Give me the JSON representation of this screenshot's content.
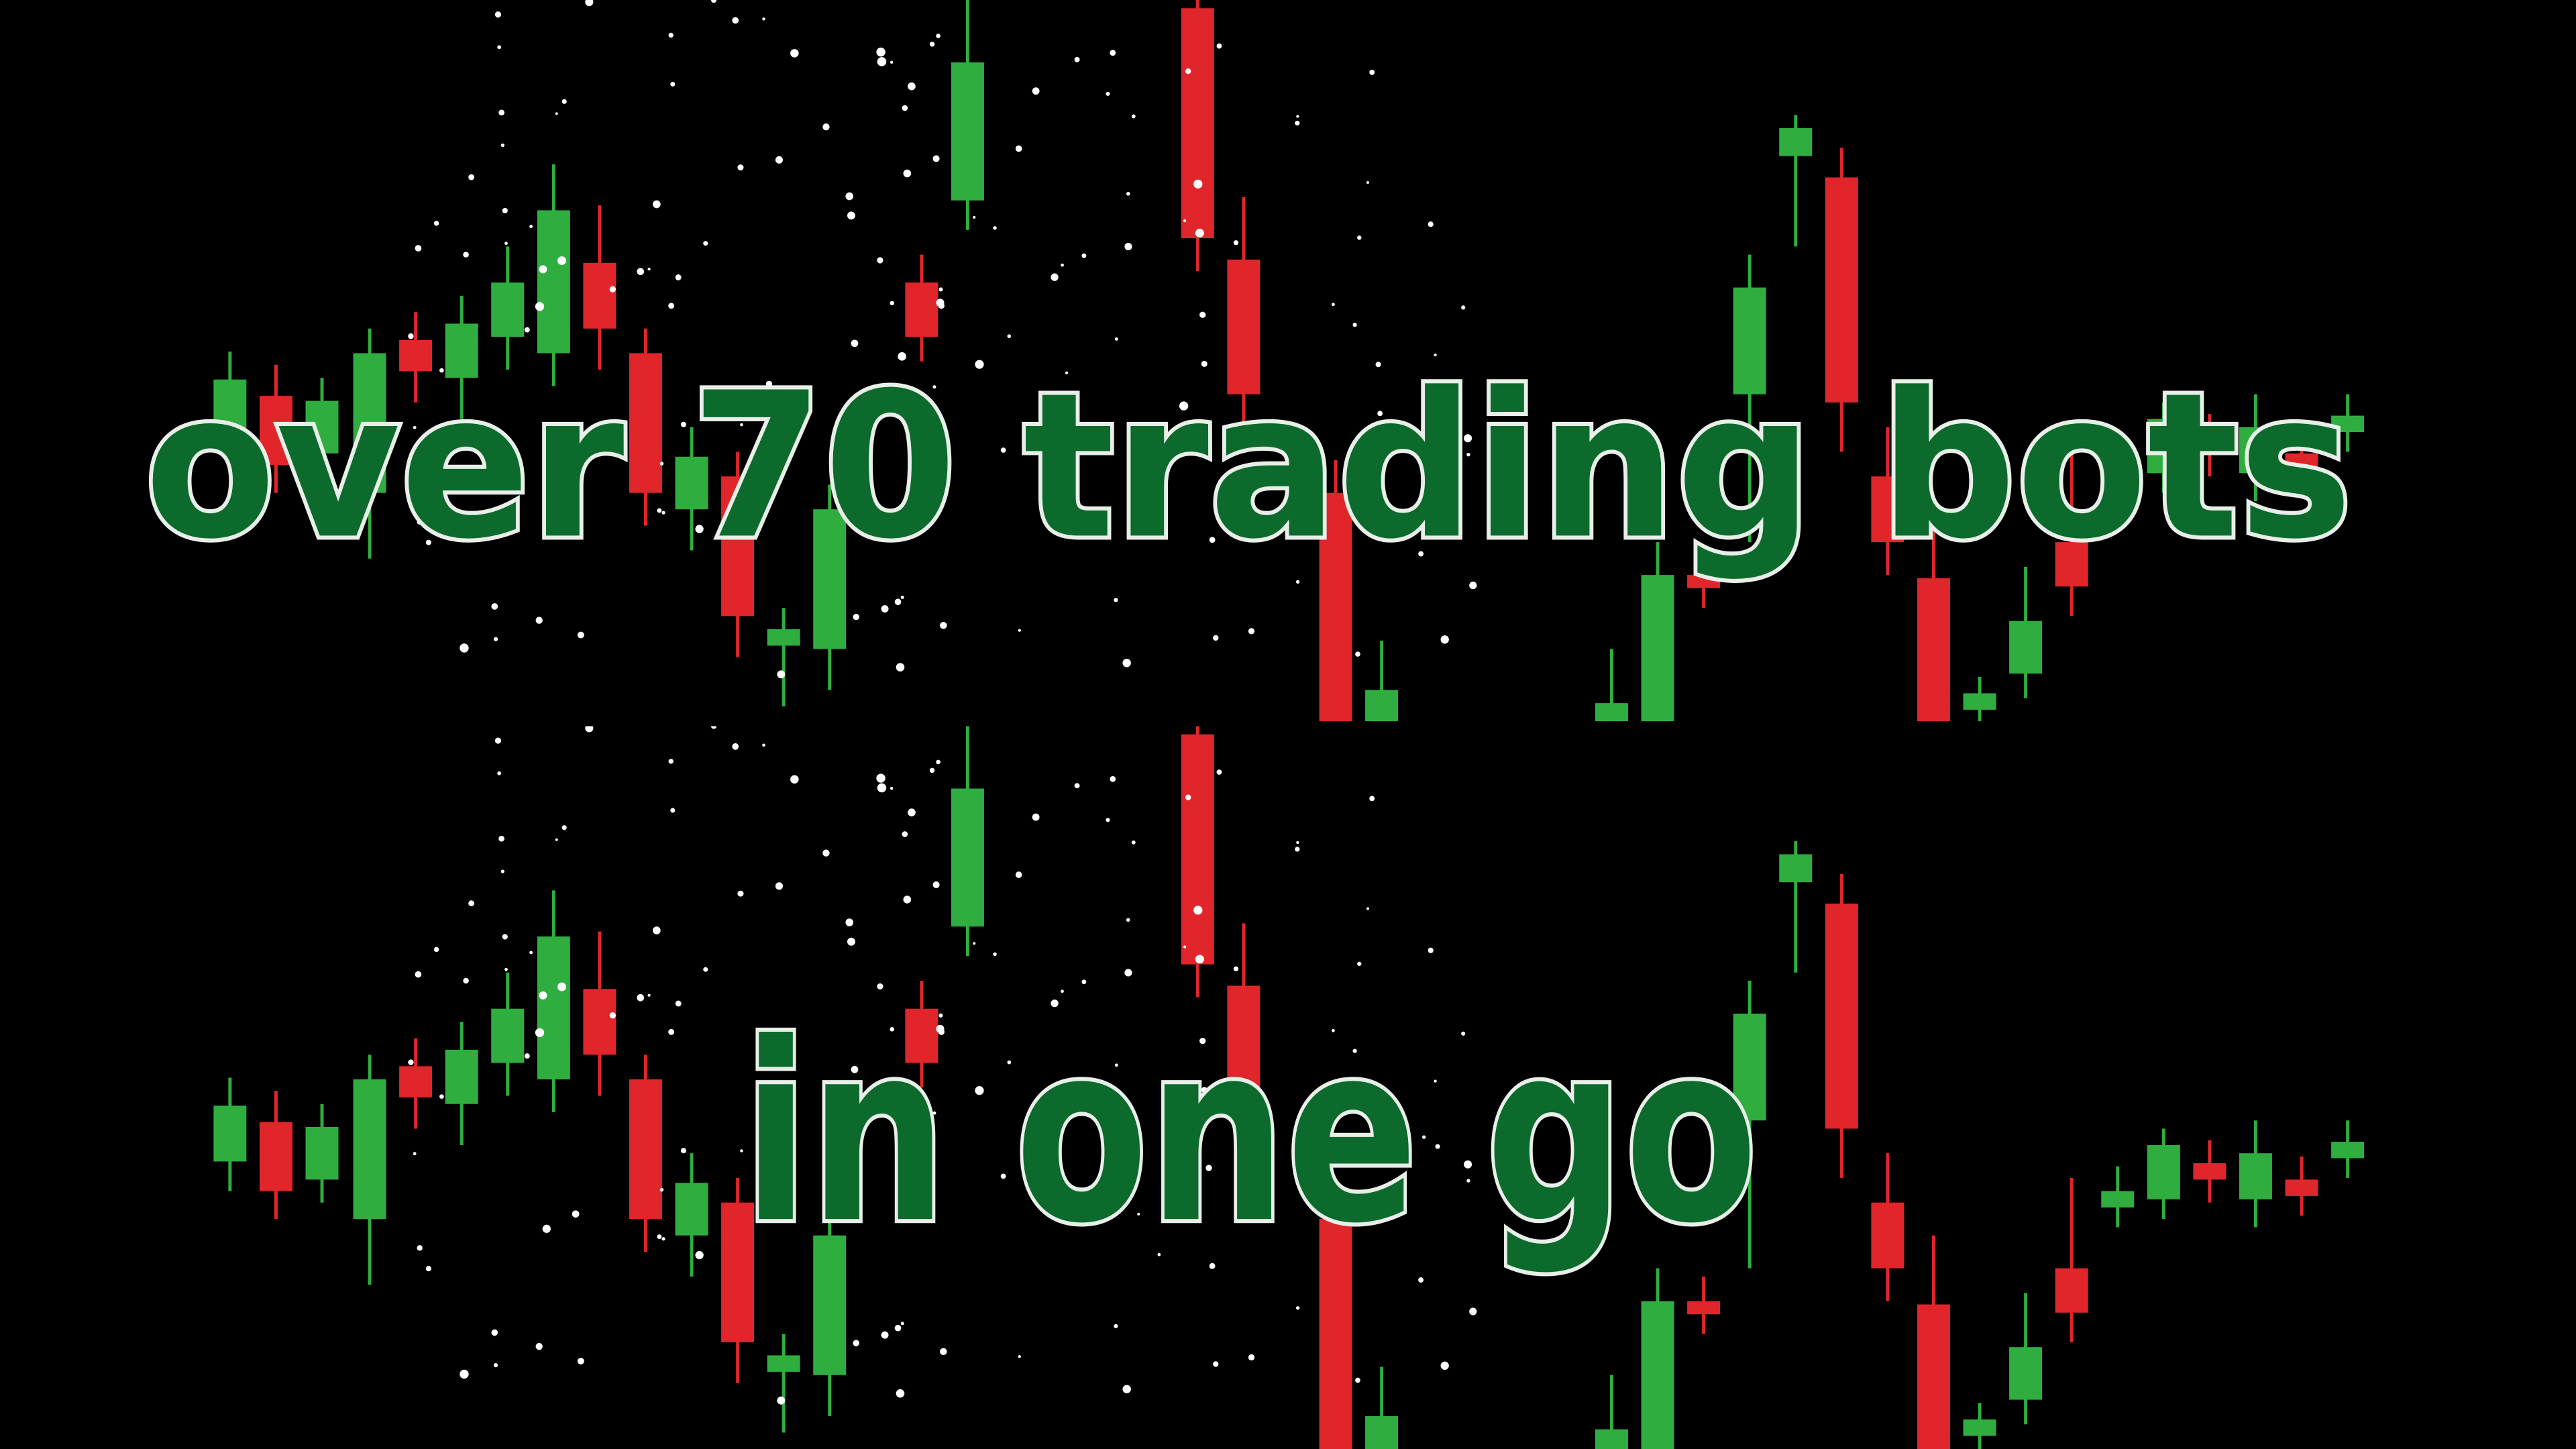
{
  "captions": {
    "line1": "over 70 trading bots",
    "line2": "in one go"
  }
}
